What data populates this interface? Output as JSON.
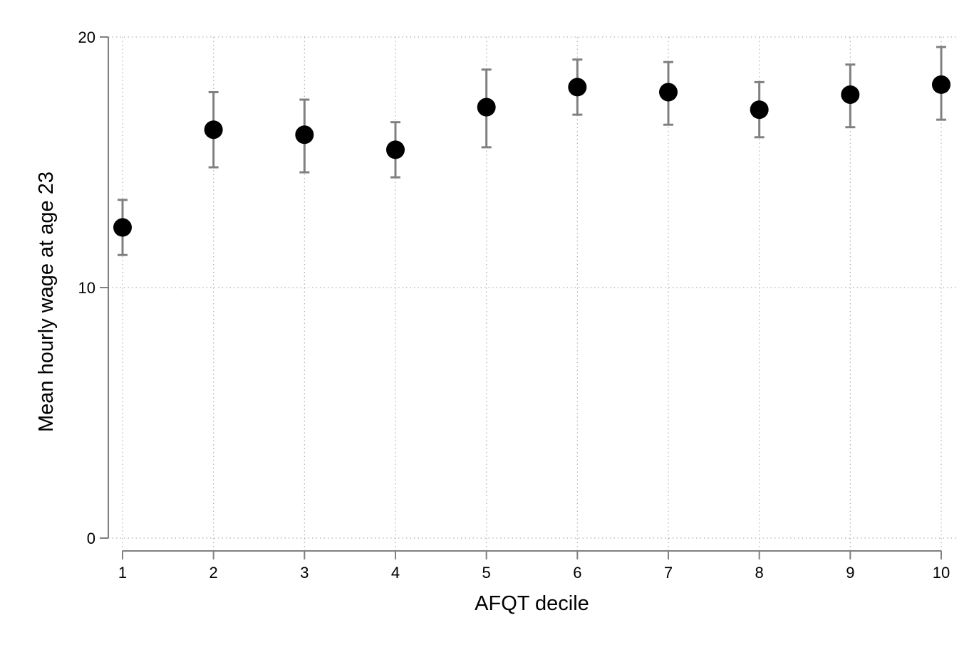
{
  "chart_data": {
    "type": "scatter",
    "title": "",
    "xlabel": "AFQT decile",
    "ylabel": "Mean hourly wage at age 23",
    "x_ticks": [
      "1",
      "2",
      "3",
      "4",
      "5",
      "6",
      "7",
      "8",
      "9",
      "10"
    ],
    "y_ticks": [
      "0",
      "10",
      "20"
    ],
    "ylim": [
      0,
      20
    ],
    "grid": true,
    "error_bars": true,
    "colors": {
      "marker": "#000000",
      "error_bar": "#808080",
      "axis": "#808080",
      "grid": "#b0b0b0"
    },
    "points": [
      {
        "x": 1,
        "y": 12.4,
        "lo": 11.3,
        "hi": 13.5
      },
      {
        "x": 2,
        "y": 16.3,
        "lo": 14.8,
        "hi": 17.8
      },
      {
        "x": 3,
        "y": 16.1,
        "lo": 14.6,
        "hi": 17.5
      },
      {
        "x": 4,
        "y": 15.5,
        "lo": 14.4,
        "hi": 16.6
      },
      {
        "x": 5,
        "y": 17.2,
        "lo": 15.6,
        "hi": 18.7
      },
      {
        "x": 6,
        "y": 18.0,
        "lo": 16.9,
        "hi": 19.1
      },
      {
        "x": 7,
        "y": 17.8,
        "lo": 16.5,
        "hi": 19.0
      },
      {
        "x": 8,
        "y": 17.1,
        "lo": 16.0,
        "hi": 18.2
      },
      {
        "x": 9,
        "y": 17.7,
        "lo": 16.4,
        "hi": 18.9
      },
      {
        "x": 10,
        "y": 18.1,
        "lo": 16.7,
        "hi": 19.6
      }
    ]
  }
}
